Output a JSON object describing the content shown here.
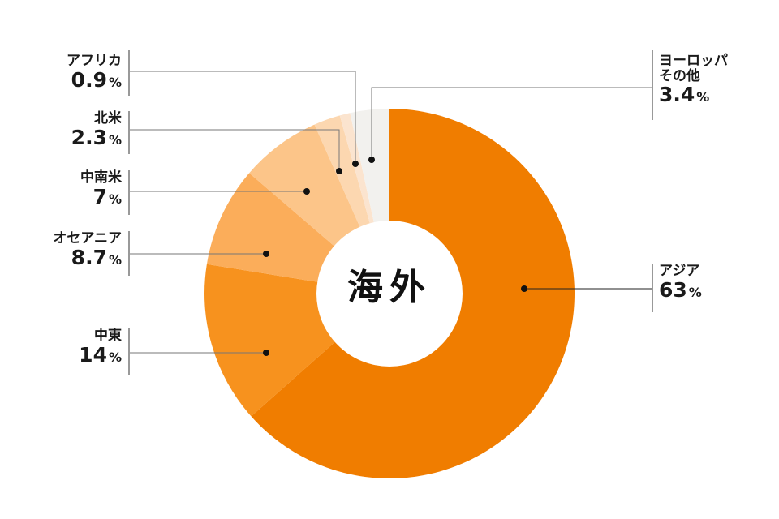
{
  "chart_data": {
    "type": "pie",
    "donut": true,
    "center_label": "海外",
    "unit": "%",
    "slices": [
      {
        "name": "アジア",
        "value": 63,
        "color": "#f07d00"
      },
      {
        "name": "中東",
        "value": 14,
        "color": "#f7921e"
      },
      {
        "name": "オセアニア",
        "value": 8.7,
        "color": "#fbad5a"
      },
      {
        "name": "中南米",
        "value": 7,
        "color": "#fcc589"
      },
      {
        "name": "北米",
        "value": 2.3,
        "color": "#fcd7b0"
      },
      {
        "name": "アフリカ",
        "value": 0.9,
        "color": "#fbe4cf"
      },
      {
        "name": "ヨーロッパ その他",
        "value": 3.4,
        "color": "#f2f1ee"
      }
    ],
    "start": "top",
    "direction": "clockwise"
  }
}
